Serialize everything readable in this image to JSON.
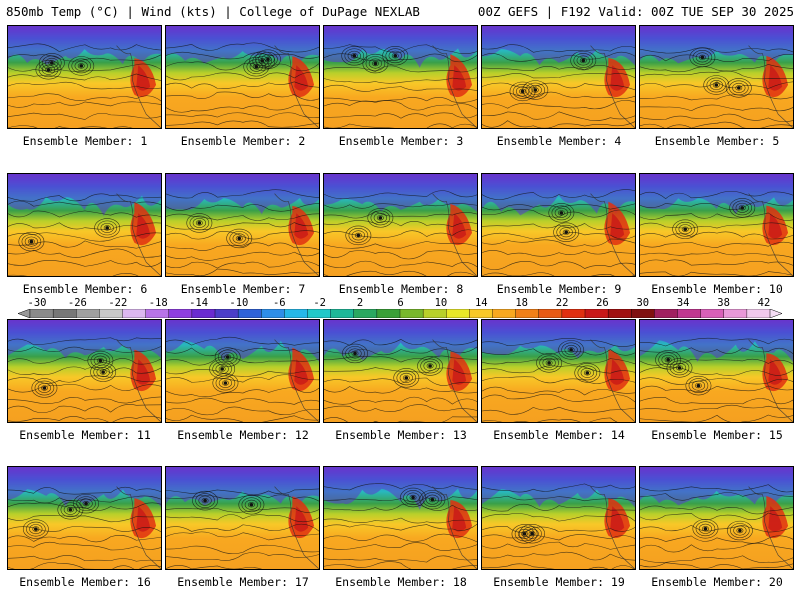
{
  "header": {
    "left_title": "850mb Temp (°C) | Wind (kts) | College of DuPage NEXLAB",
    "right_title": "00Z GEFS | F192 Valid: 00Z TUE SEP 30 2025"
  },
  "members": [
    {
      "label": "Ensemble Member: 1"
    },
    {
      "label": "Ensemble Member: 2"
    },
    {
      "label": "Ensemble Member: 3"
    },
    {
      "label": "Ensemble Member: 4"
    },
    {
      "label": "Ensemble Member: 5"
    },
    {
      "label": "Ensemble Member: 6"
    },
    {
      "label": "Ensemble Member: 7"
    },
    {
      "label": "Ensemble Member: 8"
    },
    {
      "label": "Ensemble Member: 9"
    },
    {
      "label": "Ensemble Member: 10"
    },
    {
      "label": "Ensemble Member: 11"
    },
    {
      "label": "Ensemble Member: 12"
    },
    {
      "label": "Ensemble Member: 13"
    },
    {
      "label": "Ensemble Member: 14"
    },
    {
      "label": "Ensemble Member: 15"
    },
    {
      "label": "Ensemble Member: 16"
    },
    {
      "label": "Ensemble Member: 17"
    },
    {
      "label": "Ensemble Member: 18"
    },
    {
      "label": "Ensemble Member: 19"
    },
    {
      "label": "Ensemble Member: 20"
    }
  ],
  "colorbar": {
    "ticks": [
      "-30",
      "-26",
      "-22",
      "-18",
      "-14",
      "-10",
      "-6",
      "-2",
      "2",
      "6",
      "10",
      "14",
      "18",
      "22",
      "26",
      "30",
      "34",
      "38",
      "42"
    ],
    "colors": [
      "#8a8a8a",
      "#777777",
      "#a0a0a0",
      "#c8c8c8",
      "#dcb8f0",
      "#b874e8",
      "#8e3ee0",
      "#6a2bd0",
      "#4b3ec8",
      "#2f62d8",
      "#2e8ee8",
      "#26b8e8",
      "#22c8c8",
      "#1eb898",
      "#2aa860",
      "#3aa038",
      "#78b82c",
      "#b8d02a",
      "#e8e828",
      "#f8c828",
      "#f8a820",
      "#f08018",
      "#e85a14",
      "#e03010",
      "#c81818",
      "#a01010",
      "#801010",
      "#a02060",
      "#c03890",
      "#d860b8",
      "#e898d8",
      "#f0c8ec"
    ]
  }
}
